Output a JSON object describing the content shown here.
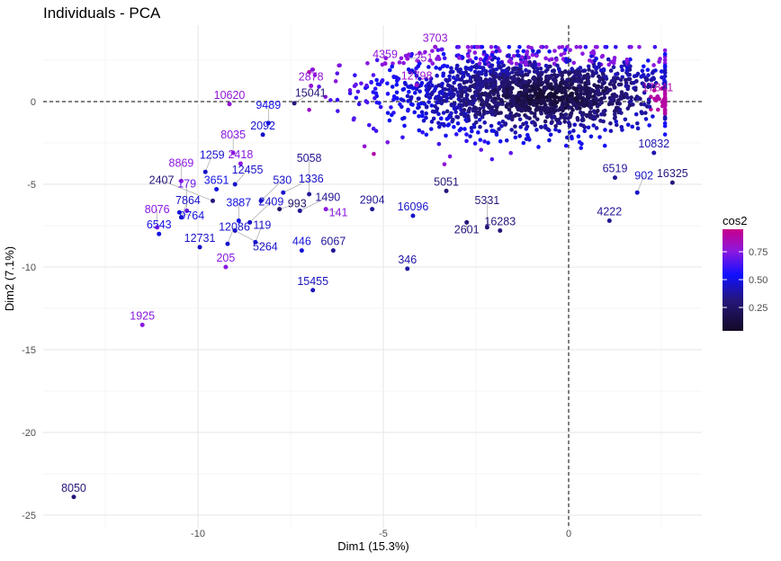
{
  "chart_data": {
    "type": "scatter",
    "title": "Individuals - PCA",
    "xlabel": "Dim1 (15.3%)",
    "ylabel": "Dim2 (7.1%)",
    "xlim": [
      -14.1,
      3.6
    ],
    "ylim": [
      -25.5,
      4.6
    ],
    "x_ticks": [
      -10,
      -5,
      0
    ],
    "y_ticks": [
      0,
      -5,
      -10,
      -15,
      -20,
      -25
    ],
    "grid": true,
    "reference_lines": {
      "x": 0,
      "y": 0,
      "style": "dashed"
    },
    "color_variable": "cos2",
    "legend": {
      "title": "cos2",
      "position": "right",
      "ticks": [
        0.75,
        0.5,
        0.25
      ],
      "range": [
        0.04,
        0.95
      ],
      "colors": {
        "low": "#140a24",
        "mid": "#1010ff",
        "high": "#c8008a"
      }
    },
    "labeled_points": [
      {
        "label": "8050",
        "x": -13.35,
        "y": -23.9,
        "cos2": 0.3
      },
      {
        "label": "1925",
        "x": -11.5,
        "y": -13.5,
        "cos2": 0.78
      },
      {
        "label": "15455",
        "x": -6.9,
        "y": -11.4,
        "cos2": 0.42
      },
      {
        "label": "346",
        "x": -4.35,
        "y": -10.1,
        "cos2": 0.38
      },
      {
        "label": "205",
        "x": -9.25,
        "y": -10.0,
        "cos2": 0.78
      },
      {
        "label": "446",
        "x": -7.2,
        "y": -9.0,
        "cos2": 0.48
      },
      {
        "label": "6067",
        "x": -6.35,
        "y": -9.0,
        "cos2": 0.35
      },
      {
        "label": "12731",
        "x": -9.95,
        "y": -8.8,
        "cos2": 0.45
      },
      {
        "label": "12086",
        "x": -9.2,
        "y": -8.6,
        "cos2": 0.45
      },
      {
        "label": "119",
        "x": -8.45,
        "y": -8.5,
        "cos2": 0.45
      },
      {
        "label": "6543",
        "x": -11.05,
        "y": -8.0,
        "cos2": 0.5
      },
      {
        "label": "8076",
        "x": -11.1,
        "y": -7.6,
        "cos2": 0.78
      },
      {
        "label": "7864",
        "x": -10.45,
        "y": -7.0,
        "cos2": 0.45
      },
      {
        "label": "9764",
        "x": -10.5,
        "y": -6.7,
        "cos2": 0.5
      },
      {
        "label": "179",
        "x": -10.3,
        "y": -6.6,
        "cos2": 0.72
      },
      {
        "label": "3887",
        "x": -8.9,
        "y": -7.2,
        "cos2": 0.5
      },
      {
        "label": "2409",
        "x": -8.6,
        "y": -7.3,
        "cos2": 0.45
      },
      {
        "label": "5264",
        "x": -9.0,
        "y": -7.8,
        "cos2": 0.45
      },
      {
        "label": "10620",
        "x": -9.15,
        "y": -0.15,
        "cos2": 0.8
      },
      {
        "label": "8869",
        "x": -10.45,
        "y": -4.8,
        "cos2": 0.78
      },
      {
        "label": "1259",
        "x": -9.8,
        "y": -4.25,
        "cos2": 0.45
      },
      {
        "label": "3651",
        "x": -9.5,
        "y": -5.3,
        "cos2": 0.5
      },
      {
        "label": "12455",
        "x": -9.0,
        "y": -5.0,
        "cos2": 0.45
      },
      {
        "label": "2407",
        "x": -9.6,
        "y": -6.0,
        "cos2": 0.3
      },
      {
        "label": "530",
        "x": -8.3,
        "y": -6.0,
        "cos2": 0.45
      },
      {
        "label": "1336",
        "x": -7.7,
        "y": -5.5,
        "cos2": 0.45
      },
      {
        "label": "993",
        "x": -7.8,
        "y": -6.5,
        "cos2": 0.25
      },
      {
        "label": "1490",
        "x": -7.25,
        "y": -6.6,
        "cos2": 0.35
      },
      {
        "label": "5058",
        "x": -7.0,
        "y": -5.6,
        "cos2": 0.35
      },
      {
        "label": "141",
        "x": -6.55,
        "y": -6.5,
        "cos2": 0.78
      },
      {
        "label": "2418",
        "x": -8.85,
        "y": -3.75,
        "cos2": 0.78
      },
      {
        "label": "8035",
        "x": -9.05,
        "y": -3.1,
        "cos2": 0.78
      },
      {
        "label": "2092",
        "x": -8.25,
        "y": -2.0,
        "cos2": 0.45
      },
      {
        "label": "9489",
        "x": -8.1,
        "y": -1.3,
        "cos2": 0.5
      },
      {
        "label": "10832",
        "x": 2.3,
        "y": -3.1,
        "cos2": 0.4
      },
      {
        "label": "6519",
        "x": 1.25,
        "y": -4.6,
        "cos2": 0.35
      },
      {
        "label": "16325",
        "x": 2.8,
        "y": -4.9,
        "cos2": 0.3
      },
      {
        "label": "902",
        "x": 1.85,
        "y": -5.5,
        "cos2": 0.45
      },
      {
        "label": "4222",
        "x": 1.1,
        "y": -7.2,
        "cos2": 0.35
      },
      {
        "label": "16283",
        "x": -1.85,
        "y": -7.8,
        "cos2": 0.3
      },
      {
        "label": "5331",
        "x": -2.2,
        "y": -7.6,
        "cos2": 0.3
      },
      {
        "label": "2601",
        "x": -2.75,
        "y": -7.3,
        "cos2": 0.3
      },
      {
        "label": "16096",
        "x": -4.2,
        "y": -6.9,
        "cos2": 0.45
      },
      {
        "label": "2904",
        "x": -5.3,
        "y": -6.5,
        "cos2": 0.35
      },
      {
        "label": "5051",
        "x": -3.3,
        "y": -5.4,
        "cos2": 0.3
      },
      {
        "label": "3703",
        "x": -3.6,
        "y": 3.3,
        "cos2": 0.8
      },
      {
        "label": "4359",
        "x": -4.95,
        "y": 2.3,
        "cos2": 0.8
      },
      {
        "label": "251",
        "x": -4.35,
        "y": 2.6,
        "cos2": 0.8
      },
      {
        "label": "12798",
        "x": -4.1,
        "y": 1.0,
        "cos2": 0.82
      },
      {
        "label": "2878",
        "x": -6.95,
        "y": 0.95,
        "cos2": 0.8
      },
      {
        "label": "15041",
        "x": -7.4,
        "y": -0.1,
        "cos2": 0.3
      },
      {
        "label": "17841",
        "x": 2.4,
        "y": 0.3,
        "cos2": 0.88
      }
    ]
  }
}
